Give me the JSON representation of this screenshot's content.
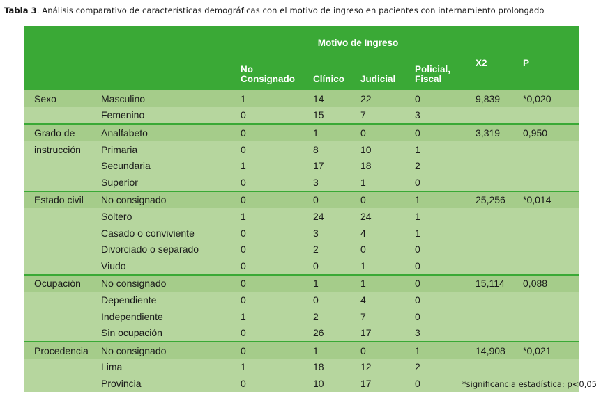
{
  "caption": {
    "label": "Tabla 3",
    "text": ". Análisis comparativo de características demográficas con el motivo de ingreso en pacientes con internamiento prolongado"
  },
  "header": {
    "group_label": "Motivo de Ingreso",
    "columns": [
      "No Consignado",
      "Clínico",
      "Judicial",
      "Policial, Fiscal",
      "X2",
      "P"
    ]
  },
  "groups": [
    {
      "name": "Sexo",
      "x2": "9,839",
      "p": "*0,020",
      "rows": [
        {
          "label": "Masculino",
          "values": [
            "1",
            "14",
            "22",
            "0"
          ]
        },
        {
          "label": "Femenino",
          "values": [
            "0",
            "15",
            "7",
            "3"
          ]
        }
      ]
    },
    {
      "name": "Grado de instrucción",
      "x2": "3,319",
      "p": "0,950",
      "rows": [
        {
          "label": "Analfabeto",
          "values": [
            "0",
            "1",
            "0",
            "0"
          ]
        },
        {
          "label": "Primaria",
          "values": [
            "0",
            "8",
            "10",
            "1"
          ]
        },
        {
          "label": "Secundaria",
          "values": [
            "1",
            "17",
            "18",
            "2"
          ]
        },
        {
          "label": "Superior",
          "values": [
            "0",
            "3",
            "1",
            "0"
          ]
        }
      ]
    },
    {
      "name": "Estado civil",
      "x2": "25,256",
      "p": "*0,014",
      "rows": [
        {
          "label": "No consignado",
          "values": [
            "0",
            "0",
            "0",
            "1"
          ]
        },
        {
          "label": "Soltero",
          "values": [
            "1",
            "24",
            "24",
            "1"
          ]
        },
        {
          "label": "Casado o conviviente",
          "values": [
            "0",
            "3",
            "4",
            "1"
          ]
        },
        {
          "label": "Divorciado o separado",
          "values": [
            "0",
            "2",
            "0",
            "0"
          ]
        },
        {
          "label": "Viudo",
          "values": [
            "0",
            "0",
            "1",
            "0"
          ]
        }
      ]
    },
    {
      "name": "Ocupación",
      "x2": "15,114",
      "p": "0,088",
      "rows": [
        {
          "label": "No consignado",
          "values": [
            "0",
            "1",
            "1",
            "0"
          ]
        },
        {
          "label": "Dependiente",
          "values": [
            "0",
            "0",
            "4",
            "0"
          ]
        },
        {
          "label": "Independiente",
          "values": [
            "1",
            "2",
            "7",
            "0"
          ]
        },
        {
          "label": "Sin ocupación",
          "values": [
            "0",
            "26",
            "17",
            "3"
          ]
        }
      ]
    },
    {
      "name": "Procedencia",
      "x2": "14,908",
      "p": "*0,021",
      "rows": [
        {
          "label": "No consignado",
          "values": [
            "0",
            "1",
            "0",
            "1"
          ]
        },
        {
          "label": "Lima",
          "values": [
            "1",
            "18",
            "12",
            "2"
          ]
        },
        {
          "label": "Provincia",
          "values": [
            "0",
            "10",
            "17",
            "0"
          ]
        }
      ]
    }
  ],
  "footnote": "*significancia estadística: p<0,05",
  "colors": {
    "header_bg": "#3aa936",
    "row_dark": "#a5cc8a",
    "row_light": "#b6d69e"
  }
}
